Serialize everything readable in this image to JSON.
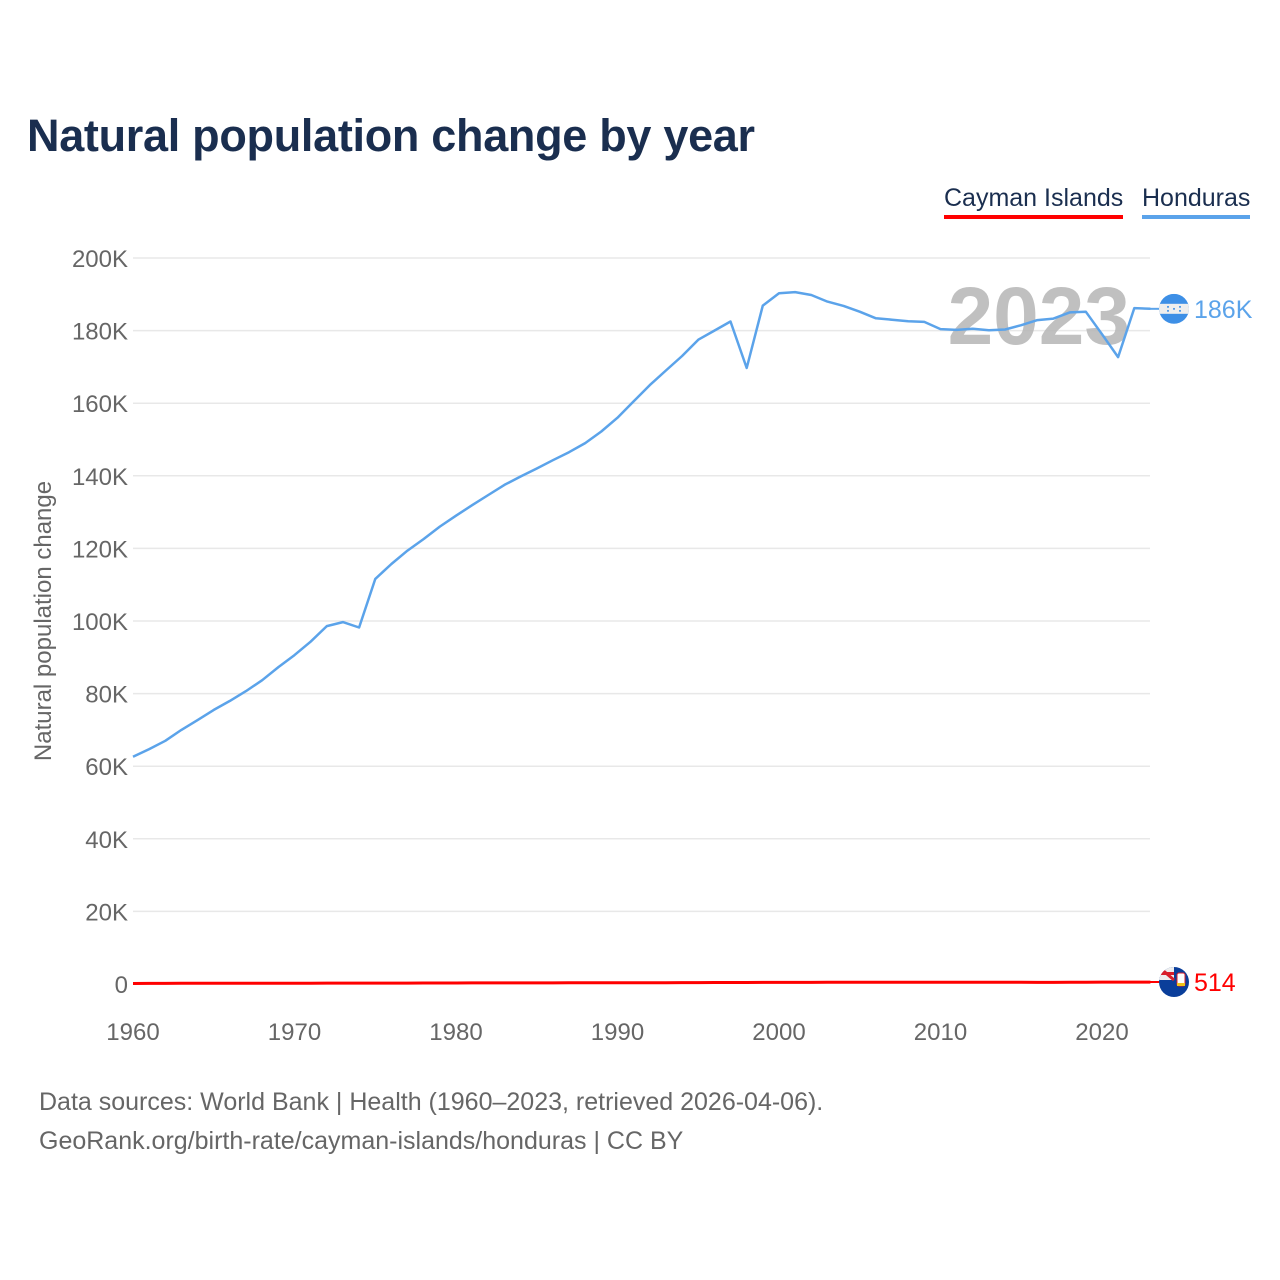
{
  "title": "Natural population change by year",
  "legend": [
    "Cayman Islands",
    "Honduras"
  ],
  "footer": {
    "line1": "Data sources: World Bank | Health (1960–2023, retrieved 2026-04-06).",
    "line2": "GeoRank.org/birth-rate/cayman-islands/honduras | CC BY"
  },
  "chart_data": {
    "type": "line",
    "title": "Natural population change by year",
    "xlabel": "",
    "ylabel": "Natural population change",
    "xlim": [
      1960,
      2023
    ],
    "ylim": [
      0,
      200000
    ],
    "xticks": [
      1960,
      1970,
      1980,
      1990,
      2000,
      2010,
      2020
    ],
    "xtick_labels": [
      "1960",
      "1970",
      "1980",
      "1990",
      "2000",
      "2010",
      "2020"
    ],
    "yticks": [
      0,
      20000,
      40000,
      60000,
      80000,
      100000,
      120000,
      140000,
      160000,
      180000,
      200000
    ],
    "ytick_labels": [
      "0",
      "20K",
      "40K",
      "60K",
      "80K",
      "100K",
      "120K",
      "140K",
      "160K",
      "180K",
      "200K"
    ],
    "grid": true,
    "legend_position": "top-right",
    "year_watermark": "2023",
    "x": [
      1960,
      1961,
      1962,
      1963,
      1964,
      1965,
      1966,
      1967,
      1968,
      1969,
      1970,
      1971,
      1972,
      1973,
      1974,
      1975,
      1976,
      1977,
      1978,
      1979,
      1980,
      1981,
      1982,
      1983,
      1984,
      1985,
      1986,
      1987,
      1988,
      1989,
      1990,
      1991,
      1992,
      1993,
      1994,
      1995,
      1996,
      1997,
      1998,
      1999,
      2000,
      2001,
      2002,
      2003,
      2004,
      2005,
      2006,
      2007,
      2008,
      2009,
      2010,
      2011,
      2012,
      2013,
      2014,
      2015,
      2016,
      2017,
      2018,
      2019,
      2020,
      2021,
      2022,
      2023
    ],
    "series": [
      {
        "name": "Cayman Islands",
        "color": "#ff0000",
        "end_label": "514",
        "flag": "cayman-islands-flag",
        "values": [
          150,
          160,
          170,
          180,
          180,
          190,
          200,
          200,
          210,
          210,
          220,
          230,
          240,
          240,
          250,
          250,
          260,
          260,
          270,
          270,
          280,
          290,
          290,
          300,
          300,
          310,
          310,
          320,
          320,
          330,
          340,
          350,
          360,
          370,
          380,
          390,
          400,
          410,
          420,
          430,
          440,
          450,
          450,
          460,
          470,
          480,
          480,
          490,
          490,
          500,
          500,
          500,
          490,
          480,
          470,
          460,
          450,
          450,
          470,
          500,
          520,
          510,
          510,
          514
        ]
      },
      {
        "name": "Honduras",
        "color": "#5ba3ea",
        "end_label": "186K",
        "flag": "honduras-flag",
        "values": [
          62600,
          64700,
          67000,
          70000,
          72700,
          75500,
          78000,
          80700,
          83700,
          87300,
          90600,
          94300,
          98600,
          99700,
          98200,
          111600,
          115700,
          119400,
          122600,
          126000,
          129000,
          131900,
          134700,
          137500,
          139800,
          142000,
          144300,
          146500,
          149000,
          152200,
          156000,
          160500,
          165000,
          169000,
          173000,
          177500,
          180000,
          182500,
          169700,
          186900,
          190300,
          190600,
          189800,
          188000,
          186800,
          185200,
          183400,
          183000,
          182600,
          182400,
          180400,
          180200,
          180500,
          180100,
          180300,
          181500,
          182900,
          183300,
          185000,
          185200,
          179000,
          172700,
          186200,
          186000
        ]
      }
    ]
  }
}
